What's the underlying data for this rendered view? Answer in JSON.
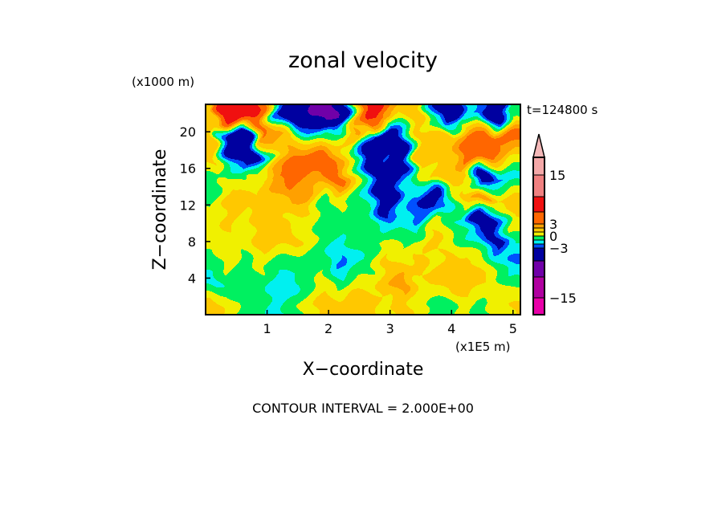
{
  "chart_data": {
    "type": "heatmap",
    "title": "zonal velocity",
    "xlabel": "X−coordinate",
    "ylabel": "Z−coordinate",
    "x_unit": "(x1E5 m)",
    "y_unit": "(x1000 m)",
    "time_label": "t=124800 s",
    "footer": "CONTOUR INTERVAL = 2.000E+00",
    "xlim": [
      0,
      5.12
    ],
    "ylim": [
      0,
      23
    ],
    "xticks": [
      "1",
      "2",
      "3",
      "4",
      "5"
    ],
    "xtick_values": [
      1,
      2,
      3,
      4,
      5
    ],
    "yticks": [
      "4",
      "8",
      "12",
      "16",
      "20"
    ],
    "ytick_values": [
      4,
      8,
      12,
      16,
      20
    ],
    "colorbar": {
      "levels": [
        -15,
        -11,
        -7,
        -3,
        -2,
        -1,
        0,
        1,
        2,
        3,
        5,
        10,
        15,
        20
      ],
      "colors": [
        "#e800a8",
        "#b000a0",
        "#7000a8",
        "#0000a0",
        "#0050ff",
        "#00f0f0",
        "#00f060",
        "#f0f000",
        "#ffc800",
        "#ffa000",
        "#ff6600",
        "#f01010",
        "#f08080",
        "#f4a8a8",
        "#f4b8b8"
      ],
      "labels": [
        "15",
        "3",
        "0",
        "−3",
        "−15"
      ],
      "label_values": [
        15,
        3,
        0,
        -3,
        -15
      ],
      "extend": "max"
    },
    "grid_note_rows_top_to_bottom": true,
    "z": [
      [
        1.5,
        10,
        8,
        4,
        -2.5,
        -6,
        -6,
        -10,
        -6,
        1,
        8,
        3,
        1,
        2,
        -2.5,
        -6,
        -1.5,
        -2.5,
        -6,
        -1
      ],
      [
        1,
        -6,
        -6,
        3,
        2.5,
        1,
        -0.5,
        -1.5,
        0.5,
        2.5,
        -1.5,
        -6,
        -2.5,
        1,
        2,
        1,
        3,
        4,
        3,
        4
      ],
      [
        2,
        -2.5,
        -6,
        -2.5,
        1,
        3,
        4,
        4,
        2,
        -1.5,
        -6,
        -2.5,
        -6,
        2,
        1,
        1,
        4,
        4,
        3,
        1
      ],
      [
        -0.5,
        0.5,
        -0.5,
        1,
        3,
        4,
        2.5,
        3,
        4,
        1,
        -2.5,
        -6,
        -2.5,
        -0.5,
        1,
        2,
        0.5,
        -6,
        -2.5,
        -1.5
      ],
      [
        -0.5,
        1.5,
        1.5,
        1,
        1.5,
        2.5,
        2,
        -0.5,
        0.5,
        -0.5,
        -1.5,
        -6,
        -1.5,
        -2.5,
        -6,
        -1.5,
        1.5,
        3,
        1,
        1.5
      ],
      [
        0.5,
        1.5,
        0.5,
        1.5,
        1.5,
        0.5,
        0.5,
        -0.5,
        -0.5,
        -0.5,
        -0.5,
        -2.5,
        -1.5,
        -2.5,
        0.5,
        -0.5,
        -1.5,
        -6,
        -2.5,
        1
      ],
      [
        0.5,
        0.5,
        0.5,
        1.5,
        1.5,
        1.5,
        0.5,
        -0.5,
        -1.5,
        -0.5,
        -0.5,
        0.5,
        -0.5,
        0.5,
        1.5,
        0.5,
        -0.5,
        -1.5,
        -4,
        -0.5
      ],
      [
        -0.5,
        0.5,
        -0.5,
        0.5,
        -0.5,
        -0.5,
        -0.5,
        -0.5,
        -2.5,
        -1.5,
        -0.5,
        1.5,
        0.5,
        1.5,
        0.5,
        1.5,
        1.5,
        0.5,
        -0.5,
        -2.5
      ],
      [
        -1.5,
        -0.5,
        -0.5,
        -0.5,
        -1.5,
        -1.5,
        -0.5,
        0.5,
        -0.5,
        0.5,
        0.5,
        1.5,
        3,
        0.5,
        1.5,
        1.5,
        2,
        1.5,
        0.5,
        -0.5
      ],
      [
        1.5,
        0.5,
        -0.5,
        -0.5,
        -1.5,
        -0.5,
        0.5,
        1.5,
        1.5,
        2,
        1.5,
        0.5,
        1.5,
        0.5,
        -0.5,
        -0.5,
        0.5,
        -0.5,
        0.5,
        1
      ]
    ]
  }
}
